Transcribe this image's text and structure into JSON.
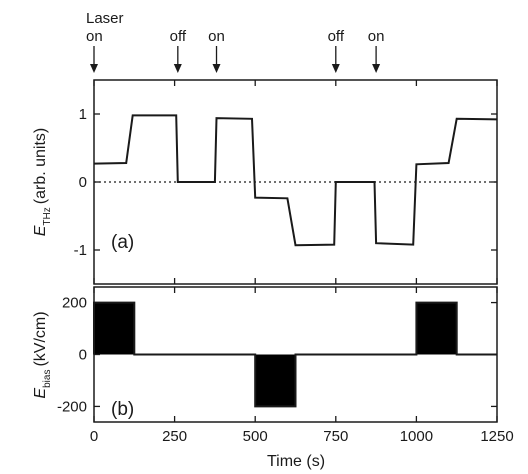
{
  "chart_data": [
    {
      "type": "line",
      "panel_label": "(a)",
      "ylabel": {
        "symbol": "E",
        "subscript": "THz",
        "text": "(arb. units)"
      },
      "xlim": [
        0,
        1250
      ],
      "ylim": [
        -1.5,
        1.5
      ],
      "yticks": [
        -1,
        0,
        1
      ],
      "ytick_labels": [
        "-1",
        "0",
        "1"
      ],
      "x_tick_marks": [
        0,
        250,
        500,
        750,
        1000,
        1250
      ],
      "reference_line": {
        "y": 0,
        "style": "dotted"
      },
      "series": [
        {
          "x": [
            0,
            100,
            120,
            255,
            260,
            375,
            380,
            490,
            500,
            600,
            625,
            745,
            750,
            870,
            875,
            990,
            1000,
            1100,
            1125,
            1250
          ],
          "y": [
            0.27,
            0.28,
            0.98,
            0.98,
            0.0,
            0.0,
            0.94,
            0.93,
            -0.23,
            -0.24,
            -0.93,
            -0.92,
            0.0,
            0.0,
            -0.9,
            -0.92,
            0.26,
            0.28,
            0.93,
            0.92
          ]
        }
      ],
      "annotations": [
        {
          "lines": [
            "Laser",
            "on"
          ],
          "x": 0
        },
        {
          "lines": [
            "off"
          ],
          "x": 260
        },
        {
          "lines": [
            "on"
          ],
          "x": 380
        },
        {
          "lines": [
            "off"
          ],
          "x": 750
        },
        {
          "lines": [
            "on"
          ],
          "x": 875
        }
      ]
    },
    {
      "type": "area",
      "panel_label": "(b)",
      "xlabel": "Time (s)",
      "ylabel": {
        "symbol": "E",
        "subscript": "bias",
        "text": "(kV/cm)"
      },
      "xlim": [
        0,
        1250
      ],
      "ylim": [
        -260,
        260
      ],
      "xticks": [
        0,
        250,
        500,
        750,
        1000,
        1250
      ],
      "xtick_labels": [
        "0",
        "250",
        "500",
        "750",
        "1000",
        "1250"
      ],
      "yticks": [
        -200,
        0,
        200
      ],
      "ytick_labels": [
        "-200",
        "0",
        "200"
      ],
      "series": [
        {
          "x": [
            0,
            0,
            125,
            125,
            500,
            500,
            625,
            625,
            1000,
            1000,
            1125,
            1125,
            1250
          ],
          "y": [
            0,
            200,
            200,
            0,
            0,
            -200,
            -200,
            0,
            0,
            200,
            200,
            0,
            0
          ]
        }
      ]
    }
  ]
}
